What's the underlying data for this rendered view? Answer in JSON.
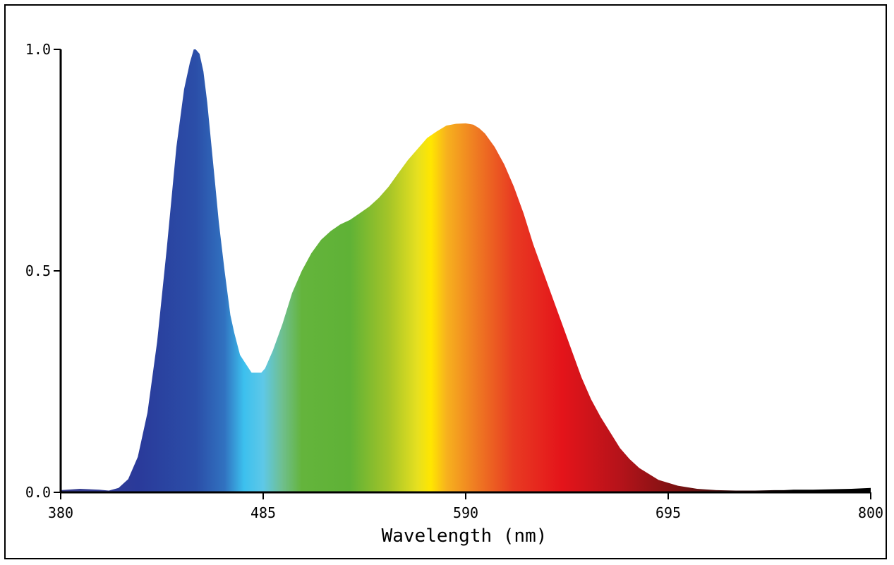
{
  "chart_data": {
    "type": "area",
    "title": "",
    "xlabel": "Wavelength (nm)",
    "ylabel": "",
    "xlim": [
      380,
      800
    ],
    "ylim": [
      0,
      1.0
    ],
    "grid": false,
    "legend": "none",
    "x_ticks": [
      {
        "value": 380,
        "label": "380"
      },
      {
        "value": 485,
        "label": "485"
      },
      {
        "value": 590,
        "label": "590"
      },
      {
        "value": 695,
        "label": "695"
      },
      {
        "value": 800,
        "label": "800"
      }
    ],
    "y_ticks": [
      {
        "value": 0.0,
        "label": "0.0"
      },
      {
        "value": 0.5,
        "label": "0.5"
      },
      {
        "value": 1.0,
        "label": "1.0"
      }
    ],
    "series": [
      {
        "x": [
          380,
          390,
          400,
          405,
          410,
          415,
          420,
          425,
          430,
          435,
          440,
          444,
          447,
          449,
          450,
          452,
          454,
          456,
          458,
          460,
          462,
          465,
          468,
          470,
          473,
          476,
          479,
          482,
          484,
          486,
          490,
          495,
          500,
          505,
          510,
          515,
          520,
          525,
          530,
          535,
          540,
          545,
          550,
          555,
          560,
          565,
          570,
          575,
          580,
          585,
          590,
          594,
          597,
          600,
          605,
          610,
          615,
          620,
          625,
          630,
          635,
          640,
          645,
          650,
          655,
          660,
          665,
          670,
          675,
          680,
          690,
          700,
          710,
          720,
          730,
          740,
          750,
          755,
          760,
          770,
          780,
          790,
          800
        ],
        "y": [
          0.005,
          0.008,
          0.006,
          0.004,
          0.01,
          0.03,
          0.08,
          0.18,
          0.34,
          0.55,
          0.78,
          0.91,
          0.97,
          1.0,
          1.0,
          0.99,
          0.95,
          0.88,
          0.79,
          0.7,
          0.61,
          0.5,
          0.4,
          0.36,
          0.31,
          0.29,
          0.27,
          0.27,
          0.27,
          0.28,
          0.32,
          0.38,
          0.45,
          0.5,
          0.54,
          0.57,
          0.59,
          0.605,
          0.615,
          0.63,
          0.645,
          0.665,
          0.69,
          0.72,
          0.75,
          0.775,
          0.8,
          0.815,
          0.828,
          0.832,
          0.833,
          0.83,
          0.822,
          0.81,
          0.78,
          0.74,
          0.69,
          0.63,
          0.56,
          0.5,
          0.44,
          0.38,
          0.32,
          0.26,
          0.21,
          0.17,
          0.135,
          0.1,
          0.075,
          0.055,
          0.028,
          0.015,
          0.008,
          0.005,
          0.004,
          0.004,
          0.005,
          0.005,
          0.006,
          0.006,
          0.007,
          0.008,
          0.01
        ]
      }
    ],
    "spectrum_colors": [
      {
        "nm": 380,
        "color": "#3a3f8c"
      },
      {
        "nm": 420,
        "color": "#2a3a9a"
      },
      {
        "nm": 450,
        "color": "#2b4ea8"
      },
      {
        "nm": 465,
        "color": "#3172c0"
      },
      {
        "nm": 475,
        "color": "#3cc0ee"
      },
      {
        "nm": 485,
        "color": "#5ec8e8"
      },
      {
        "nm": 495,
        "color": "#6fbf8e"
      },
      {
        "nm": 505,
        "color": "#64b43c"
      },
      {
        "nm": 530,
        "color": "#5fb236"
      },
      {
        "nm": 550,
        "color": "#a4c428"
      },
      {
        "nm": 565,
        "color": "#e6e020"
      },
      {
        "nm": 572,
        "color": "#ffe600"
      },
      {
        "nm": 580,
        "color": "#f7b21e"
      },
      {
        "nm": 595,
        "color": "#ef7c22"
      },
      {
        "nm": 615,
        "color": "#e83a22"
      },
      {
        "nm": 640,
        "color": "#e4141a"
      },
      {
        "nm": 670,
        "color": "#b5131a"
      },
      {
        "nm": 700,
        "color": "#7a1212"
      },
      {
        "nm": 730,
        "color": "#361010"
      },
      {
        "nm": 760,
        "color": "#000000"
      },
      {
        "nm": 800,
        "color": "#000000"
      }
    ]
  }
}
